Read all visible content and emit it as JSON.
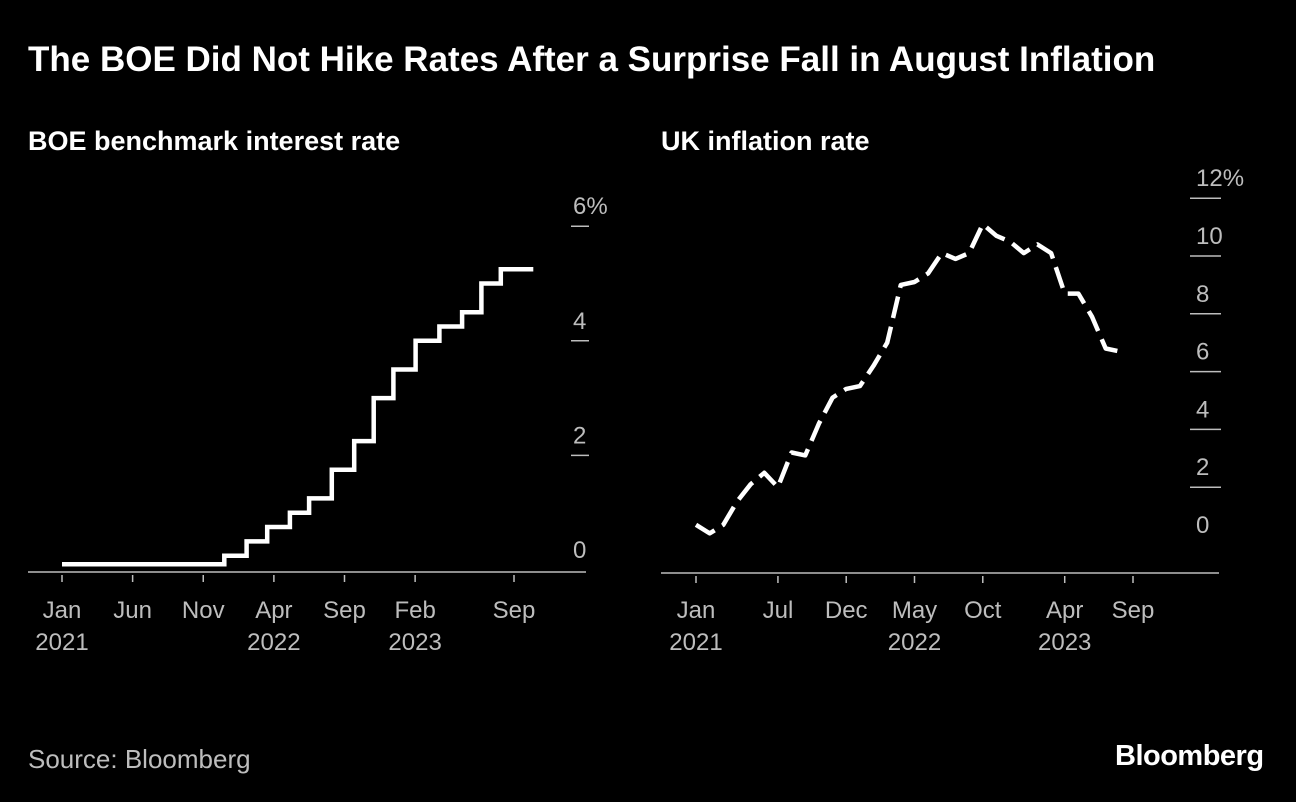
{
  "title": "The BOE Did Not Hike Rates After a Surprise Fall in August Inflation",
  "source": "Source: Bloomberg",
  "brand": "Bloomberg",
  "colors": {
    "background": "#000000",
    "line": "#ffffff",
    "axis": "#bdbdbd"
  },
  "chart_data": [
    {
      "type": "line",
      "style": "step",
      "title": "BOE benchmark interest rate",
      "unit": "%",
      "xlabel": "",
      "ylabel": "",
      "ylim": [
        -0.1,
        6
      ],
      "y_ticks": [
        0,
        2,
        4,
        6
      ],
      "y_tick_labels": [
        "0",
        "2",
        "4",
        "6%"
      ],
      "x_ticks": [
        {
          "date": "2021-01",
          "label": "Jan",
          "year": "2021"
        },
        {
          "date": "2021-06",
          "label": "Jun",
          "year": ""
        },
        {
          "date": "2021-11",
          "label": "Nov",
          "year": ""
        },
        {
          "date": "2022-04",
          "label": "Apr",
          "year": "2022"
        },
        {
          "date": "2022-09",
          "label": "Sep",
          "year": ""
        },
        {
          "date": "2023-02",
          "label": "Feb",
          "year": "2023"
        },
        {
          "date": "2023-09",
          "label": "Sep",
          "year": ""
        }
      ],
      "series": [
        {
          "name": "BOE benchmark interest rate",
          "x": [
            "2021-01-01",
            "2021-12-16",
            "2022-02-03",
            "2022-03-17",
            "2022-05-05",
            "2022-06-16",
            "2022-08-04",
            "2022-09-22",
            "2022-11-03",
            "2022-12-15",
            "2023-02-02",
            "2023-03-23",
            "2023-05-11",
            "2023-06-22",
            "2023-08-03",
            "2023-09-21"
          ],
          "values": [
            0.1,
            0.25,
            0.5,
            0.75,
            1.0,
            1.25,
            1.75,
            2.25,
            3.0,
            3.5,
            4.0,
            4.25,
            4.5,
            5.0,
            5.25,
            5.25
          ]
        }
      ]
    },
    {
      "type": "line",
      "style": "dashed",
      "title": "UK inflation rate",
      "unit": "%",
      "xlabel": "",
      "ylabel": "",
      "ylim": [
        -1,
        12
      ],
      "y_ticks": [
        0,
        2,
        4,
        6,
        8,
        10,
        12
      ],
      "y_tick_labels": [
        "0",
        "2",
        "4",
        "6",
        "8",
        "10",
        "12%"
      ],
      "x_ticks": [
        {
          "date": "2021-01",
          "label": "Jan",
          "year": "2021"
        },
        {
          "date": "2021-07",
          "label": "Jul",
          "year": ""
        },
        {
          "date": "2021-12",
          "label": "Dec",
          "year": ""
        },
        {
          "date": "2022-05",
          "label": "May",
          "year": "2022"
        },
        {
          "date": "2022-10",
          "label": "Oct",
          "year": ""
        },
        {
          "date": "2023-04",
          "label": "Apr",
          "year": "2023"
        },
        {
          "date": "2023-09",
          "label": "Sep",
          "year": ""
        }
      ],
      "series": [
        {
          "name": "UK inflation rate",
          "x": [
            "2021-01",
            "2021-02",
            "2021-03",
            "2021-04",
            "2021-05",
            "2021-06",
            "2021-07",
            "2021-08",
            "2021-09",
            "2021-10",
            "2021-11",
            "2021-12",
            "2022-01",
            "2022-02",
            "2022-03",
            "2022-04",
            "2022-05",
            "2022-06",
            "2022-07",
            "2022-08",
            "2022-09",
            "2022-10",
            "2022-11",
            "2022-12",
            "2023-01",
            "2023-02",
            "2023-03",
            "2023-04",
            "2023-05",
            "2023-06",
            "2023-07",
            "2023-08"
          ],
          "values": [
            0.7,
            0.4,
            0.7,
            1.5,
            2.1,
            2.5,
            2.0,
            3.2,
            3.1,
            4.2,
            5.1,
            5.4,
            5.5,
            6.2,
            7.0,
            9.0,
            9.1,
            9.4,
            10.1,
            9.9,
            10.1,
            11.1,
            10.7,
            10.5,
            10.1,
            10.4,
            10.1,
            8.7,
            8.7,
            7.9,
            6.8,
            6.7
          ]
        }
      ]
    }
  ]
}
